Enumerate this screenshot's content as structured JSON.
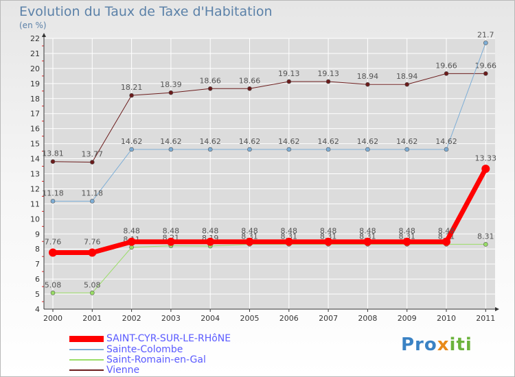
{
  "chart_data": {
    "type": "line",
    "title": "Evolution du Taux de Taxe d'Habitation",
    "ylabel": "(en %)",
    "xlabel": "",
    "ylim": [
      4,
      22
    ],
    "yticks": [
      4,
      5,
      6,
      7,
      8,
      9,
      10,
      11,
      12,
      13,
      14,
      15,
      16,
      17,
      18,
      19,
      20,
      21,
      22
    ],
    "x": [
      "2000",
      "2001",
      "2002",
      "2003",
      "2004",
      "2005",
      "2006",
      "2007",
      "2008",
      "2009",
      "2010",
      "2011"
    ],
    "series": [
      {
        "name": "Vienne",
        "color": "#6b1b1b",
        "values": [
          13.81,
          13.77,
          18.21,
          18.39,
          18.66,
          18.66,
          19.13,
          19.13,
          18.94,
          18.94,
          19.66,
          19.66
        ],
        "labels": [
          "13.81",
          "13.77",
          "18.21",
          "18.39",
          "18.66",
          "18.66",
          "19.13",
          "19.13",
          "18.94",
          "18.94",
          "19.66",
          "19.66"
        ]
      },
      {
        "name": "Sainte-Colombe",
        "color": "#7eaed6",
        "values": [
          11.18,
          11.18,
          14.62,
          14.62,
          14.62,
          14.62,
          14.62,
          14.62,
          14.62,
          14.62,
          14.62,
          21.7
        ],
        "labels": [
          "11.18",
          "11.18",
          "14.62",
          "14.62",
          "14.62",
          "14.62",
          "14.62",
          "14.62",
          "14.62",
          "14.62",
          "14.62",
          "21.7"
        ]
      },
      {
        "name": "Saint-Romain-en-Gal",
        "color": "#99dd66",
        "values": [
          5.08,
          5.08,
          8.11,
          8.21,
          8.19,
          8.31,
          8.31,
          8.31,
          8.31,
          8.31,
          8.31,
          8.31
        ],
        "labels": [
          "5.08",
          "5.08",
          "8.11",
          "8.21",
          "8.19",
          "8.31",
          "8.31",
          "8.31",
          "8.31",
          "8.31",
          "8.31",
          "8.31"
        ]
      },
      {
        "name": "SAINT-CYR-SUR-LE-RHôNE",
        "color": "#ff0000",
        "values": [
          7.76,
          7.76,
          8.48,
          8.48,
          8.48,
          8.48,
          8.48,
          8.48,
          8.48,
          8.48,
          8.48,
          13.33
        ],
        "labels": [
          "7.76",
          "7.76",
          "8.48",
          "8.48",
          "8.48",
          "8.48",
          "8.48",
          "8.48",
          "8.48",
          "8.48",
          "8.48",
          "13.33"
        ]
      }
    ],
    "legend": [
      "SAINT-CYR-SUR-LE-RHôNE",
      "Sainte-Colombe",
      "Saint-Romain-en-Gal",
      "Vienne"
    ]
  },
  "header": {
    "title": "Evolution du Taux de Taxe d'Habitation",
    "unit": "(en %)"
  },
  "legend": {
    "items": [
      {
        "label": "SAINT-CYR-SUR-LE-RHôNE",
        "color": "#ff0000"
      },
      {
        "label": "Sainte-Colombe",
        "color": "#7eaed6"
      },
      {
        "label": "Saint-Romain-en-Gal",
        "color": "#99dd66"
      },
      {
        "label": "Vienne",
        "color": "#6b1b1b"
      }
    ]
  },
  "brand": {
    "p1": "Pro",
    "p2": "x",
    "p3": "iti"
  },
  "colors": {
    "axis": "#333333",
    "grid": "#ffffff",
    "title": "#5b81a8",
    "legend_text": "#5a5aff"
  }
}
